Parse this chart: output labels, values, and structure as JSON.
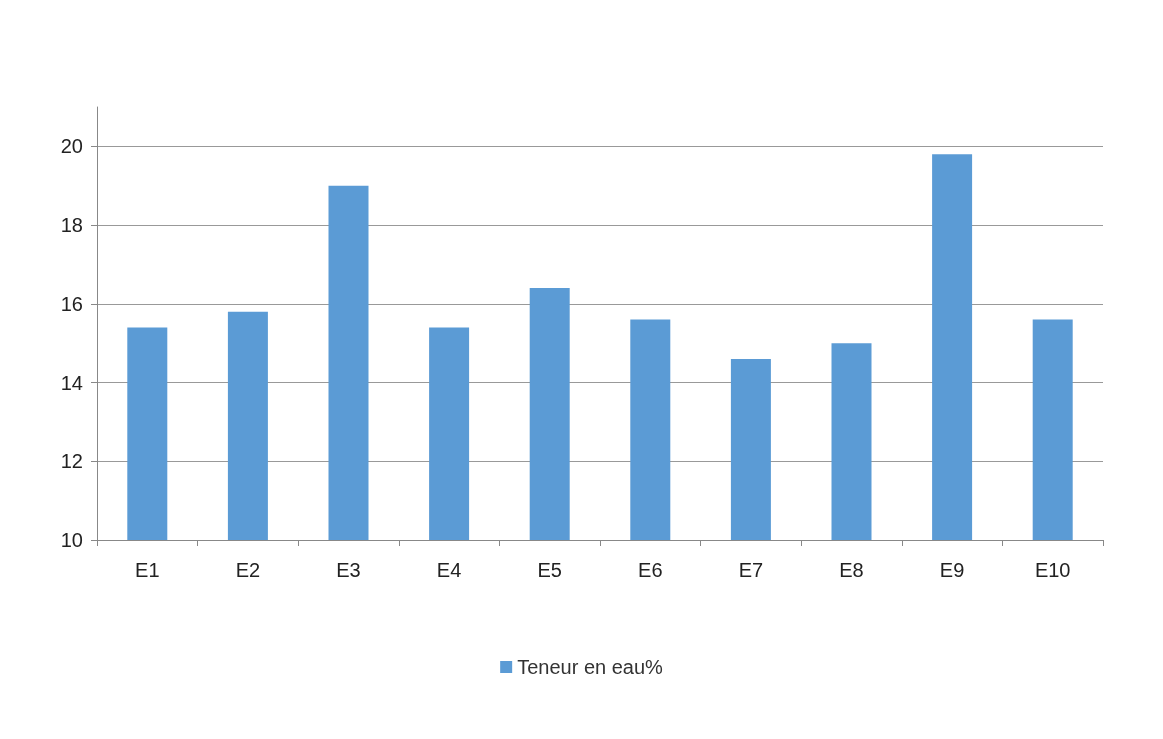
{
  "chart_data": {
    "type": "bar",
    "categories": [
      "E1",
      "E2",
      "E3",
      "E4",
      "E5",
      "E6",
      "E7",
      "E8",
      "E9",
      "E10"
    ],
    "series": [
      {
        "name": "Teneur en eau%",
        "color": "#5b9bd5",
        "values": [
          15.4,
          15.8,
          19.0,
          15.4,
          16.4,
          15.6,
          14.6,
          15.0,
          19.8,
          15.6
        ]
      }
    ],
    "ylim": [
      10,
      21
    ],
    "yticks": [
      10,
      12,
      14,
      16,
      18,
      20
    ],
    "grid": "y",
    "legend": "bottom"
  }
}
